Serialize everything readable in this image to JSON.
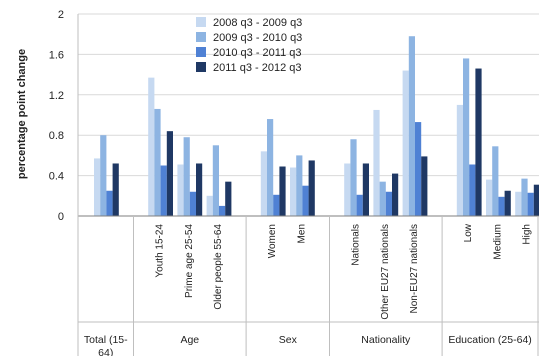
{
  "chart_data": {
    "type": "bar",
    "title": "",
    "ylabel": "percentage point change",
    "xlabel": "",
    "ylim": [
      0,
      2
    ],
    "yticks": [
      "0",
      "0.4",
      "0.8",
      "1.2",
      "1.6",
      "2"
    ],
    "grid": true,
    "legend_position": "top-center",
    "categories": [
      "",
      "Youth 15-24",
      "Prime age 25-54",
      "Older people 55-64",
      "Women",
      "Men",
      "Nationals",
      "Other EU27 nationals",
      "Non-EU27 nationals",
      "Low",
      "Medium",
      "High"
    ],
    "groups": [
      {
        "label": "Total (15-64)",
        "categories": [
          0
        ]
      },
      {
        "label": "Age",
        "categories": [
          1,
          2,
          3
        ]
      },
      {
        "label": "Sex",
        "categories": [
          4,
          5
        ]
      },
      {
        "label": "Nationality",
        "categories": [
          6,
          7,
          8
        ]
      },
      {
        "label": "Education (25-64)",
        "categories": [
          9,
          10,
          11
        ]
      }
    ],
    "series": [
      {
        "name": "2008 q3 - 2009 q3",
        "color": "#c6d9f1",
        "values": [
          0.57,
          1.37,
          0.51,
          0.2,
          0.64,
          0.48,
          0.52,
          1.05,
          1.44,
          1.1,
          0.36,
          0.24
        ]
      },
      {
        "name": "2009 q3 - 2010 q3",
        "color": "#8db4e2",
        "values": [
          0.8,
          1.06,
          0.78,
          0.7,
          0.96,
          0.6,
          0.76,
          0.34,
          1.78,
          1.56,
          0.69,
          0.37
        ]
      },
      {
        "name": "2010 q3 - 2011 q3",
        "color": "#4f81d4",
        "values": [
          0.25,
          0.5,
          0.24,
          0.1,
          0.21,
          0.3,
          0.21,
          0.24,
          0.93,
          0.51,
          0.19,
          0.23
        ]
      },
      {
        "name": "2011 q3 - 2012 q3",
        "color": "#1f3864",
        "values": [
          0.52,
          0.84,
          0.52,
          0.34,
          0.49,
          0.55,
          0.52,
          0.42,
          0.59,
          1.46,
          0.25,
          0.31
        ]
      }
    ]
  }
}
